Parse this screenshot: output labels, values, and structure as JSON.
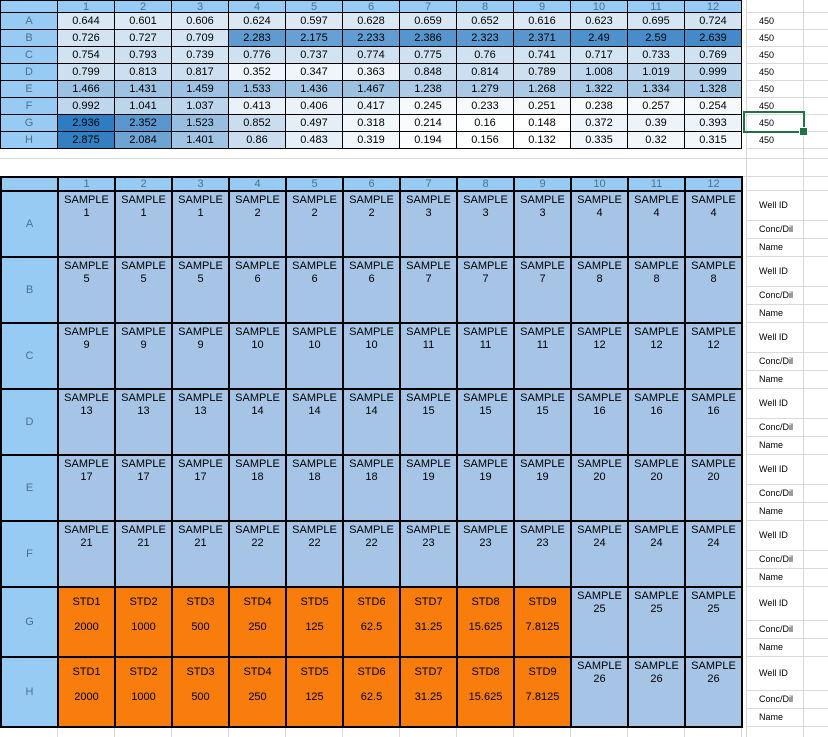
{
  "top_plate": {
    "columns": [
      "1",
      "2",
      "3",
      "4",
      "5",
      "6",
      "7",
      "8",
      "9",
      "10",
      "11",
      "12"
    ],
    "rows": [
      "A",
      "B",
      "C",
      "D",
      "E",
      "F",
      "G",
      "H"
    ],
    "values": [
      [
        "0.644",
        "0.601",
        "0.606",
        "0.624",
        "0.597",
        "0.628",
        "0.659",
        "0.652",
        "0.616",
        "0.623",
        "0.695",
        "0.724"
      ],
      [
        "0.726",
        "0.727",
        "0.709",
        "2.283",
        "2.175",
        "2.233",
        "2.386",
        "2.323",
        "2.371",
        "2.49",
        "2.59",
        "2.639"
      ],
      [
        "0.754",
        "0.793",
        "0.739",
        "0.776",
        "0.737",
        "0.774",
        "0.775",
        "0.76",
        "0.741",
        "0.717",
        "0.733",
        "0.769"
      ],
      [
        "0.799",
        "0.813",
        "0.817",
        "0.352",
        "0.347",
        "0.363",
        "0.848",
        "0.814",
        "0.789",
        "1.008",
        "1.019",
        "0.999"
      ],
      [
        "1.466",
        "1.431",
        "1.459",
        "1.533",
        "1.436",
        "1.467",
        "1.238",
        "1.279",
        "1.268",
        "1.322",
        "1.334",
        "1.328"
      ],
      [
        "0.992",
        "1.041",
        "1.037",
        "0.413",
        "0.406",
        "0.417",
        "0.245",
        "0.233",
        "0.251",
        "0.238",
        "0.257",
        "0.254"
      ],
      [
        "2.936",
        "2.352",
        "1.523",
        "0.852",
        "0.497",
        "0.318",
        "0.214",
        "0.16",
        "0.148",
        "0.372",
        "0.39",
        "0.393"
      ],
      [
        "2.875",
        "2.084",
        "1.401",
        "0.86",
        "0.483",
        "0.319",
        "0.194",
        "0.156",
        "0.132",
        "0.335",
        "0.32",
        "0.315"
      ]
    ],
    "wavelengths": [
      "450",
      "450",
      "450",
      "450",
      "450",
      "450",
      "450",
      "450"
    ],
    "selected_cell": {
      "row": "G",
      "column": "wavelength"
    }
  },
  "bottom_plate": {
    "columns": [
      "1",
      "2",
      "3",
      "4",
      "5",
      "6",
      "7",
      "8",
      "9",
      "10",
      "11",
      "12"
    ],
    "field_labels": [
      "Well ID",
      "Conc/Dil",
      "Name"
    ],
    "rows": [
      {
        "label": "A",
        "cells": [
          {
            "l1": "SAMPLE",
            "l2": "1"
          },
          {
            "l1": "SAMPLE",
            "l2": "1"
          },
          {
            "l1": "SAMPLE",
            "l2": "1"
          },
          {
            "l1": "SAMPLE",
            "l2": "2"
          },
          {
            "l1": "SAMPLE",
            "l2": "2"
          },
          {
            "l1": "SAMPLE",
            "l2": "2"
          },
          {
            "l1": "SAMPLE",
            "l2": "3"
          },
          {
            "l1": "SAMPLE",
            "l2": "3"
          },
          {
            "l1": "SAMPLE",
            "l2": "3"
          },
          {
            "l1": "SAMPLE",
            "l2": "4"
          },
          {
            "l1": "SAMPLE",
            "l2": "4"
          },
          {
            "l1": "SAMPLE",
            "l2": "4"
          }
        ]
      },
      {
        "label": "B",
        "cells": [
          {
            "l1": "SAMPLE",
            "l2": "5"
          },
          {
            "l1": "SAMPLE",
            "l2": "5"
          },
          {
            "l1": "SAMPLE",
            "l2": "5"
          },
          {
            "l1": "SAMPLE",
            "l2": "6"
          },
          {
            "l1": "SAMPLE",
            "l2": "6"
          },
          {
            "l1": "SAMPLE",
            "l2": "6"
          },
          {
            "l1": "SAMPLE",
            "l2": "7"
          },
          {
            "l1": "SAMPLE",
            "l2": "7"
          },
          {
            "l1": "SAMPLE",
            "l2": "7"
          },
          {
            "l1": "SAMPLE",
            "l2": "8"
          },
          {
            "l1": "SAMPLE",
            "l2": "8"
          },
          {
            "l1": "SAMPLE",
            "l2": "8"
          }
        ]
      },
      {
        "label": "C",
        "cells": [
          {
            "l1": "SAMPLE",
            "l2": "9"
          },
          {
            "l1": "SAMPLE",
            "l2": "9"
          },
          {
            "l1": "SAMPLE",
            "l2": "9"
          },
          {
            "l1": "SAMPLE",
            "l2": "10"
          },
          {
            "l1": "SAMPLE",
            "l2": "10"
          },
          {
            "l1": "SAMPLE",
            "l2": "10"
          },
          {
            "l1": "SAMPLE",
            "l2": "11"
          },
          {
            "l1": "SAMPLE",
            "l2": "11"
          },
          {
            "l1": "SAMPLE",
            "l2": "11"
          },
          {
            "l1": "SAMPLE",
            "l2": "12"
          },
          {
            "l1": "SAMPLE",
            "l2": "12"
          },
          {
            "l1": "SAMPLE",
            "l2": "12"
          }
        ]
      },
      {
        "label": "D",
        "cells": [
          {
            "l1": "SAMPLE",
            "l2": "13"
          },
          {
            "l1": "SAMPLE",
            "l2": "13"
          },
          {
            "l1": "SAMPLE",
            "l2": "13"
          },
          {
            "l1": "SAMPLE",
            "l2": "14"
          },
          {
            "l1": "SAMPLE",
            "l2": "14"
          },
          {
            "l1": "SAMPLE",
            "l2": "14"
          },
          {
            "l1": "SAMPLE",
            "l2": "15"
          },
          {
            "l1": "SAMPLE",
            "l2": "15"
          },
          {
            "l1": "SAMPLE",
            "l2": "15"
          },
          {
            "l1": "SAMPLE",
            "l2": "16"
          },
          {
            "l1": "SAMPLE",
            "l2": "16"
          },
          {
            "l1": "SAMPLE",
            "l2": "16"
          }
        ]
      },
      {
        "label": "E",
        "cells": [
          {
            "l1": "SAMPLE",
            "l2": "17"
          },
          {
            "l1": "SAMPLE",
            "l2": "17"
          },
          {
            "l1": "SAMPLE",
            "l2": "17"
          },
          {
            "l1": "SAMPLE",
            "l2": "18"
          },
          {
            "l1": "SAMPLE",
            "l2": "18"
          },
          {
            "l1": "SAMPLE",
            "l2": "18"
          },
          {
            "l1": "SAMPLE",
            "l2": "19"
          },
          {
            "l1": "SAMPLE",
            "l2": "19"
          },
          {
            "l1": "SAMPLE",
            "l2": "19"
          },
          {
            "l1": "SAMPLE",
            "l2": "20"
          },
          {
            "l1": "SAMPLE",
            "l2": "20"
          },
          {
            "l1": "SAMPLE",
            "l2": "20"
          }
        ]
      },
      {
        "label": "F",
        "cells": [
          {
            "l1": "SAMPLE",
            "l2": "21"
          },
          {
            "l1": "SAMPLE",
            "l2": "21"
          },
          {
            "l1": "SAMPLE",
            "l2": "21"
          },
          {
            "l1": "SAMPLE",
            "l2": "22"
          },
          {
            "l1": "SAMPLE",
            "l2": "22"
          },
          {
            "l1": "SAMPLE",
            "l2": "22"
          },
          {
            "l1": "SAMPLE",
            "l2": "23"
          },
          {
            "l1": "SAMPLE",
            "l2": "23"
          },
          {
            "l1": "SAMPLE",
            "l2": "23"
          },
          {
            "l1": "SAMPLE",
            "l2": "24"
          },
          {
            "l1": "SAMPLE",
            "l2": "24"
          },
          {
            "l1": "SAMPLE",
            "l2": "24"
          }
        ]
      },
      {
        "label": "G",
        "cells": [
          {
            "l1": "STD1",
            "l2": "2000",
            "std": true
          },
          {
            "l1": "STD2",
            "l2": "1000",
            "std": true
          },
          {
            "l1": "STD3",
            "l2": "500",
            "std": true
          },
          {
            "l1": "STD4",
            "l2": "250",
            "std": true
          },
          {
            "l1": "STD5",
            "l2": "125",
            "std": true
          },
          {
            "l1": "STD6",
            "l2": "62.5",
            "std": true
          },
          {
            "l1": "STD7",
            "l2": "31.25",
            "std": true
          },
          {
            "l1": "STD8",
            "l2": "15.625",
            "std": true
          },
          {
            "l1": "STD9",
            "l2": "7.8125",
            "std": true
          },
          {
            "l1": "SAMPLE",
            "l2": "25"
          },
          {
            "l1": "SAMPLE",
            "l2": "25"
          },
          {
            "l1": "SAMPLE",
            "l2": "25"
          }
        ]
      },
      {
        "label": "H",
        "cells": [
          {
            "l1": "STD1",
            "l2": "2000",
            "std": true
          },
          {
            "l1": "STD2",
            "l2": "1000",
            "std": true
          },
          {
            "l1": "STD3",
            "l2": "500",
            "std": true
          },
          {
            "l1": "STD4",
            "l2": "250",
            "std": true
          },
          {
            "l1": "STD5",
            "l2": "125",
            "std": true
          },
          {
            "l1": "STD6",
            "l2": "62.5",
            "std": true
          },
          {
            "l1": "STD7",
            "l2": "31.25",
            "std": true
          },
          {
            "l1": "STD8",
            "l2": "15.625",
            "std": true
          },
          {
            "l1": "STD9",
            "l2": "7.8125",
            "std": true
          },
          {
            "l1": "SAMPLE",
            "l2": "26"
          },
          {
            "l1": "SAMPLE",
            "l2": "26"
          },
          {
            "l1": "SAMPLE",
            "l2": "26"
          }
        ]
      }
    ]
  },
  "colors": {
    "header_blue": "#98CBF4",
    "sample_blue": "#A6C4E6",
    "standard_orange": "#F87D0D",
    "scale_low": "#FFFFFF",
    "scale_high": "#2E7CC1",
    "header_text": "#4E708C",
    "cell_text": "#000000",
    "selection_green": "#217346",
    "gridline": "#D9D9D9",
    "table_border": "#000000"
  }
}
